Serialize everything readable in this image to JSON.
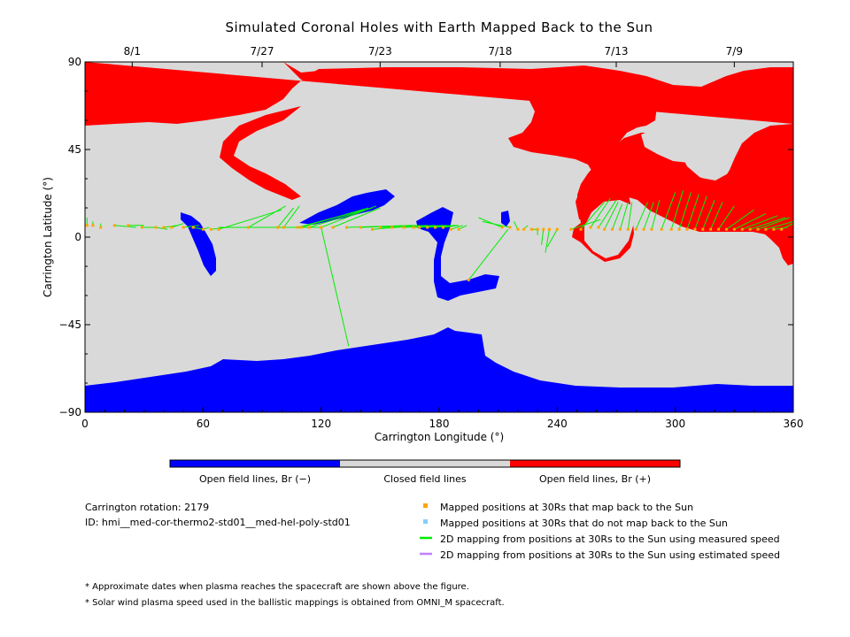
{
  "chart_data": {
    "type": "map",
    "title": "Simulated Coronal Holes with Earth Mapped Back to the Sun",
    "xlabel": "Carrington Longitude (°)",
    "ylabel": "Carrington Latitude (°)",
    "xlim": [
      0,
      360
    ],
    "ylim": [
      -90,
      90
    ],
    "x_ticks": [
      "0",
      "60",
      "120",
      "180",
      "240",
      "300",
      "360"
    ],
    "y_ticks": [
      "−90",
      "−45",
      "0",
      "45",
      "90"
    ],
    "top_date_ticks": [
      {
        "lon": 24,
        "label": "8/1"
      },
      {
        "lon": 90,
        "label": "7/27"
      },
      {
        "lon": 150,
        "label": "7/23"
      },
      {
        "lon": 211,
        "label": "7/18"
      },
      {
        "lon": 270,
        "label": "7/13"
      },
      {
        "lon": 330,
        "label": "7/9"
      }
    ],
    "colorbar": [
      {
        "label": "Open field lines, Br (−)",
        "color": "#0000ff"
      },
      {
        "label": "Closed field lines",
        "color": "#d9d9d9"
      },
      {
        "label": "Open field lines, Br (+)",
        "color": "#ff0000"
      }
    ],
    "info": {
      "rotation": "Carrington rotation: 2179",
      "id": "ID: hmi__med-cor-thermo2-std01__med-hel-poly-std01"
    },
    "legend": [
      {
        "kind": "square",
        "color": "#ffa500",
        "label": "Mapped positions at 30Rs that map back to the Sun"
      },
      {
        "kind": "square",
        "color": "#87cefa",
        "label": "Mapped positions at 30Rs that do not map back to the Sun"
      },
      {
        "kind": "line",
        "color": "#00ee00",
        "label": "2D mapping from positions at 30Rs to the Sun using measured speed"
      },
      {
        "kind": "line",
        "color": "#c080ff",
        "label": "2D mapping from positions at 30Rs to the Sun using estimated speed"
      }
    ],
    "footnotes": [
      "* Approximate dates when plasma reaches the spacecraft are shown above the figure.",
      "* Solar wind plasma speed used in the ballistic mappings is obtained from OMNI_M spacecraft."
    ],
    "mappings": [
      [
        1,
        6,
        1,
        10
      ],
      [
        4,
        6,
        4,
        8
      ],
      [
        8,
        5,
        8,
        7
      ],
      [
        15,
        6,
        26,
        5
      ],
      [
        22,
        6,
        30,
        6
      ],
      [
        29,
        5,
        36,
        5
      ],
      [
        36,
        5,
        42,
        4
      ],
      [
        40,
        5,
        47,
        6
      ],
      [
        44,
        5,
        50,
        7
      ],
      [
        50,
        5,
        58,
        6
      ],
      [
        55,
        5,
        60,
        4
      ],
      [
        60,
        4,
        63,
        5
      ],
      [
        64,
        4,
        72,
        5
      ],
      [
        68,
        4,
        100,
        14
      ],
      [
        83,
        5,
        102,
        16
      ],
      [
        98,
        5,
        106,
        15
      ],
      [
        101,
        5,
        109,
        16
      ],
      [
        108,
        5,
        142,
        14
      ],
      [
        110,
        5,
        144,
        15
      ],
      [
        114,
        5,
        146,
        15
      ],
      [
        120,
        5,
        148,
        16
      ],
      [
        126,
        5,
        150,
        15
      ],
      [
        133,
        5,
        166,
        6
      ],
      [
        140,
        5,
        168,
        6
      ],
      [
        146,
        4,
        170,
        6
      ],
      [
        150,
        5,
        174,
        6
      ],
      [
        156,
        5,
        178,
        6
      ],
      [
        162,
        5,
        182,
        6
      ],
      [
        167,
        5,
        184,
        6
      ],
      [
        170,
        5,
        186,
        6
      ],
      [
        174,
        5,
        188,
        6
      ],
      [
        178,
        5,
        189,
        6
      ],
      [
        182,
        5,
        190,
        6
      ],
      [
        186,
        4,
        192,
        6
      ],
      [
        190,
        4,
        194,
        6
      ],
      [
        212,
        5,
        200,
        10
      ],
      [
        216,
        5,
        202,
        8
      ],
      [
        220,
        4,
        218,
        8
      ],
      [
        223,
        4,
        225,
        6
      ],
      [
        227,
        4,
        230,
        4
      ],
      [
        230,
        4,
        230,
        1
      ],
      [
        233,
        4,
        232,
        -4
      ],
      [
        236,
        4,
        234,
        -8
      ],
      [
        240,
        4,
        235,
        -5
      ],
      [
        247,
        4,
        262,
        9
      ],
      [
        252,
        4,
        264,
        18
      ],
      [
        257,
        5,
        267,
        20
      ],
      [
        261,
        5,
        270,
        19
      ],
      [
        264,
        4,
        271,
        18
      ],
      [
        268,
        4,
        273,
        17
      ],
      [
        272,
        4,
        276,
        18
      ],
      [
        276,
        4,
        278,
        18
      ],
      [
        280,
        4,
        286,
        18
      ],
      [
        284,
        4,
        289,
        18
      ],
      [
        288,
        4,
        292,
        19
      ],
      [
        293,
        4,
        300,
        23
      ],
      [
        298,
        4,
        304,
        24
      ],
      [
        302,
        4,
        308,
        23
      ],
      [
        306,
        4,
        312,
        22
      ],
      [
        310,
        4,
        316,
        21
      ],
      [
        314,
        4,
        320,
        19
      ],
      [
        318,
        4,
        324,
        18
      ],
      [
        322,
        4,
        330,
        16
      ],
      [
        326,
        4,
        340,
        14
      ],
      [
        330,
        4,
        346,
        12
      ],
      [
        334,
        4,
        352,
        11
      ],
      [
        338,
        4,
        356,
        10
      ],
      [
        342,
        4,
        358,
        10
      ],
      [
        346,
        4,
        360,
        8
      ],
      [
        350,
        4,
        357,
        5
      ],
      [
        354,
        4,
        360,
        7
      ],
      [
        120,
        5,
        134,
        -56
      ],
      [
        120,
        5,
        68,
        5
      ],
      [
        195,
        -22,
        215,
        4
      ]
    ]
  }
}
